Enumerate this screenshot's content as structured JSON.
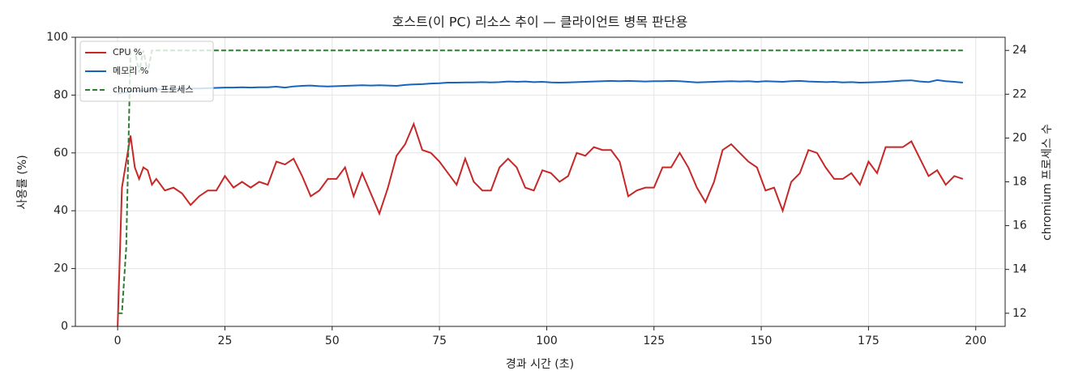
{
  "chart_data": {
    "type": "line",
    "title": "호스트(이 PC) 리소스 추이 — 클라이언트 병목 판단용",
    "xlabel": "경과 시간 (초)",
    "ylabel": "사용률 (%)",
    "y2label": "chromium 프로세스 수",
    "x": [
      0,
      1,
      2,
      3,
      4,
      5,
      6,
      7,
      8,
      9,
      11,
      13,
      15,
      17,
      19,
      21,
      23,
      25,
      27,
      29,
      31,
      33,
      35,
      37,
      39,
      41,
      43,
      45,
      47,
      49,
      51,
      53,
      55,
      57,
      59,
      61,
      63,
      65,
      67,
      69,
      71,
      73,
      75,
      77,
      79,
      81,
      83,
      85,
      87,
      89,
      91,
      93,
      95,
      97,
      99,
      101,
      103,
      105,
      107,
      109,
      111,
      113,
      115,
      117,
      119,
      121,
      123,
      125,
      127,
      129,
      131,
      133,
      135,
      137,
      139,
      141,
      143,
      145,
      147,
      149,
      151,
      153,
      155,
      157,
      159,
      161,
      163,
      165,
      167,
      169,
      171,
      173,
      175,
      177,
      179,
      181,
      183,
      185,
      187,
      189,
      191,
      193,
      195,
      197
    ],
    "series": [
      {
        "name": "CPU %",
        "color": "#c62828",
        "linestyle": "solid",
        "axis": "y",
        "values": [
          0,
          48,
          57,
          66,
          55,
          51,
          55,
          54,
          49,
          51,
          47,
          48,
          46,
          42,
          45,
          47,
          47,
          52,
          48,
          50,
          48,
          50,
          49,
          57,
          56,
          58,
          52,
          45,
          47,
          51,
          51,
          55,
          45,
          53,
          46,
          39,
          48,
          59,
          63,
          70,
          61,
          60,
          57,
          53,
          49,
          58,
          50,
          47,
          47,
          55,
          58,
          55,
          48,
          47,
          54,
          53,
          50,
          52,
          60,
          59,
          62,
          61,
          61,
          57,
          45,
          47,
          48,
          48,
          55,
          55,
          60,
          55,
          48,
          43,
          50,
          61,
          63,
          60,
          57,
          55,
          47,
          48,
          40,
          50,
          53,
          61,
          60,
          55,
          51,
          51,
          53,
          49,
          57,
          53,
          62,
          62,
          62,
          64,
          58,
          52,
          54,
          49,
          52,
          51
        ]
      },
      {
        "name": "메모리 %",
        "color": "#1565c0",
        "linestyle": "solid",
        "axis": "y",
        "values": [
          80.5,
          80.8,
          81,
          81.2,
          81.4,
          81.5,
          81.6,
          81.7,
          81.8,
          81.9,
          82.0,
          82.1,
          82.2,
          82.3,
          82.3,
          82.4,
          82.5,
          82.6,
          82.6,
          82.7,
          82.6,
          82.7,
          82.7,
          82.9,
          82.6,
          83.0,
          83.2,
          83.3,
          83.1,
          83.0,
          83.1,
          83.2,
          83.3,
          83.4,
          83.3,
          83.4,
          83.3,
          83.2,
          83.5,
          83.7,
          83.8,
          84.0,
          84.1,
          84.3,
          84.3,
          84.4,
          84.4,
          84.5,
          84.4,
          84.5,
          84.7,
          84.6,
          84.7,
          84.5,
          84.6,
          84.4,
          84.3,
          84.4,
          84.5,
          84.6,
          84.7,
          84.8,
          84.9,
          84.8,
          84.9,
          84.8,
          84.7,
          84.8,
          84.8,
          84.9,
          84.8,
          84.6,
          84.4,
          84.5,
          84.6,
          84.7,
          84.8,
          84.7,
          84.8,
          84.6,
          84.8,
          84.7,
          84.6,
          84.8,
          84.9,
          84.7,
          84.6,
          84.5,
          84.6,
          84.4,
          84.5,
          84.3,
          84.4,
          84.5,
          84.6,
          84.8,
          85.0,
          85.1,
          84.7,
          84.5,
          85.2,
          84.8,
          84.6,
          84.3
        ]
      },
      {
        "name": "chromium 프로세스",
        "color": "#2e7d32",
        "linestyle": "dashed",
        "axis": "y2",
        "values": [
          12,
          12,
          15,
          24,
          24,
          23,
          24,
          23,
          24,
          24,
          24,
          24,
          24,
          24,
          24,
          24,
          24,
          24,
          24,
          24,
          24,
          24,
          24,
          24,
          24,
          24,
          24,
          24,
          24,
          24,
          24,
          24,
          24,
          24,
          24,
          24,
          24,
          24,
          24,
          24,
          24,
          24,
          24,
          24,
          24,
          24,
          24,
          24,
          24,
          24,
          24,
          24,
          24,
          24,
          24,
          24,
          24,
          24,
          24,
          24,
          24,
          24,
          24,
          24,
          24,
          24,
          24,
          24,
          24,
          24,
          24,
          24,
          24,
          24,
          24,
          24,
          24,
          24,
          24,
          24,
          24,
          24,
          24,
          24,
          24,
          24,
          24,
          24,
          24,
          24,
          24,
          24,
          24,
          24,
          24,
          24,
          24,
          24,
          24,
          24,
          24,
          24,
          24,
          24
        ]
      }
    ],
    "xlim": [
      -9.85,
      206.85
    ],
    "xticks": [
      0,
      25,
      50,
      75,
      100,
      125,
      150,
      175,
      200
    ],
    "ylim": [
      0,
      100
    ],
    "yticks": [
      0,
      20,
      40,
      60,
      80,
      100
    ],
    "y2lim": [
      11.4,
      24.6
    ],
    "y2ticks": [
      12,
      14,
      16,
      18,
      20,
      22,
      24
    ],
    "grid": true,
    "legend": "upper-left"
  }
}
